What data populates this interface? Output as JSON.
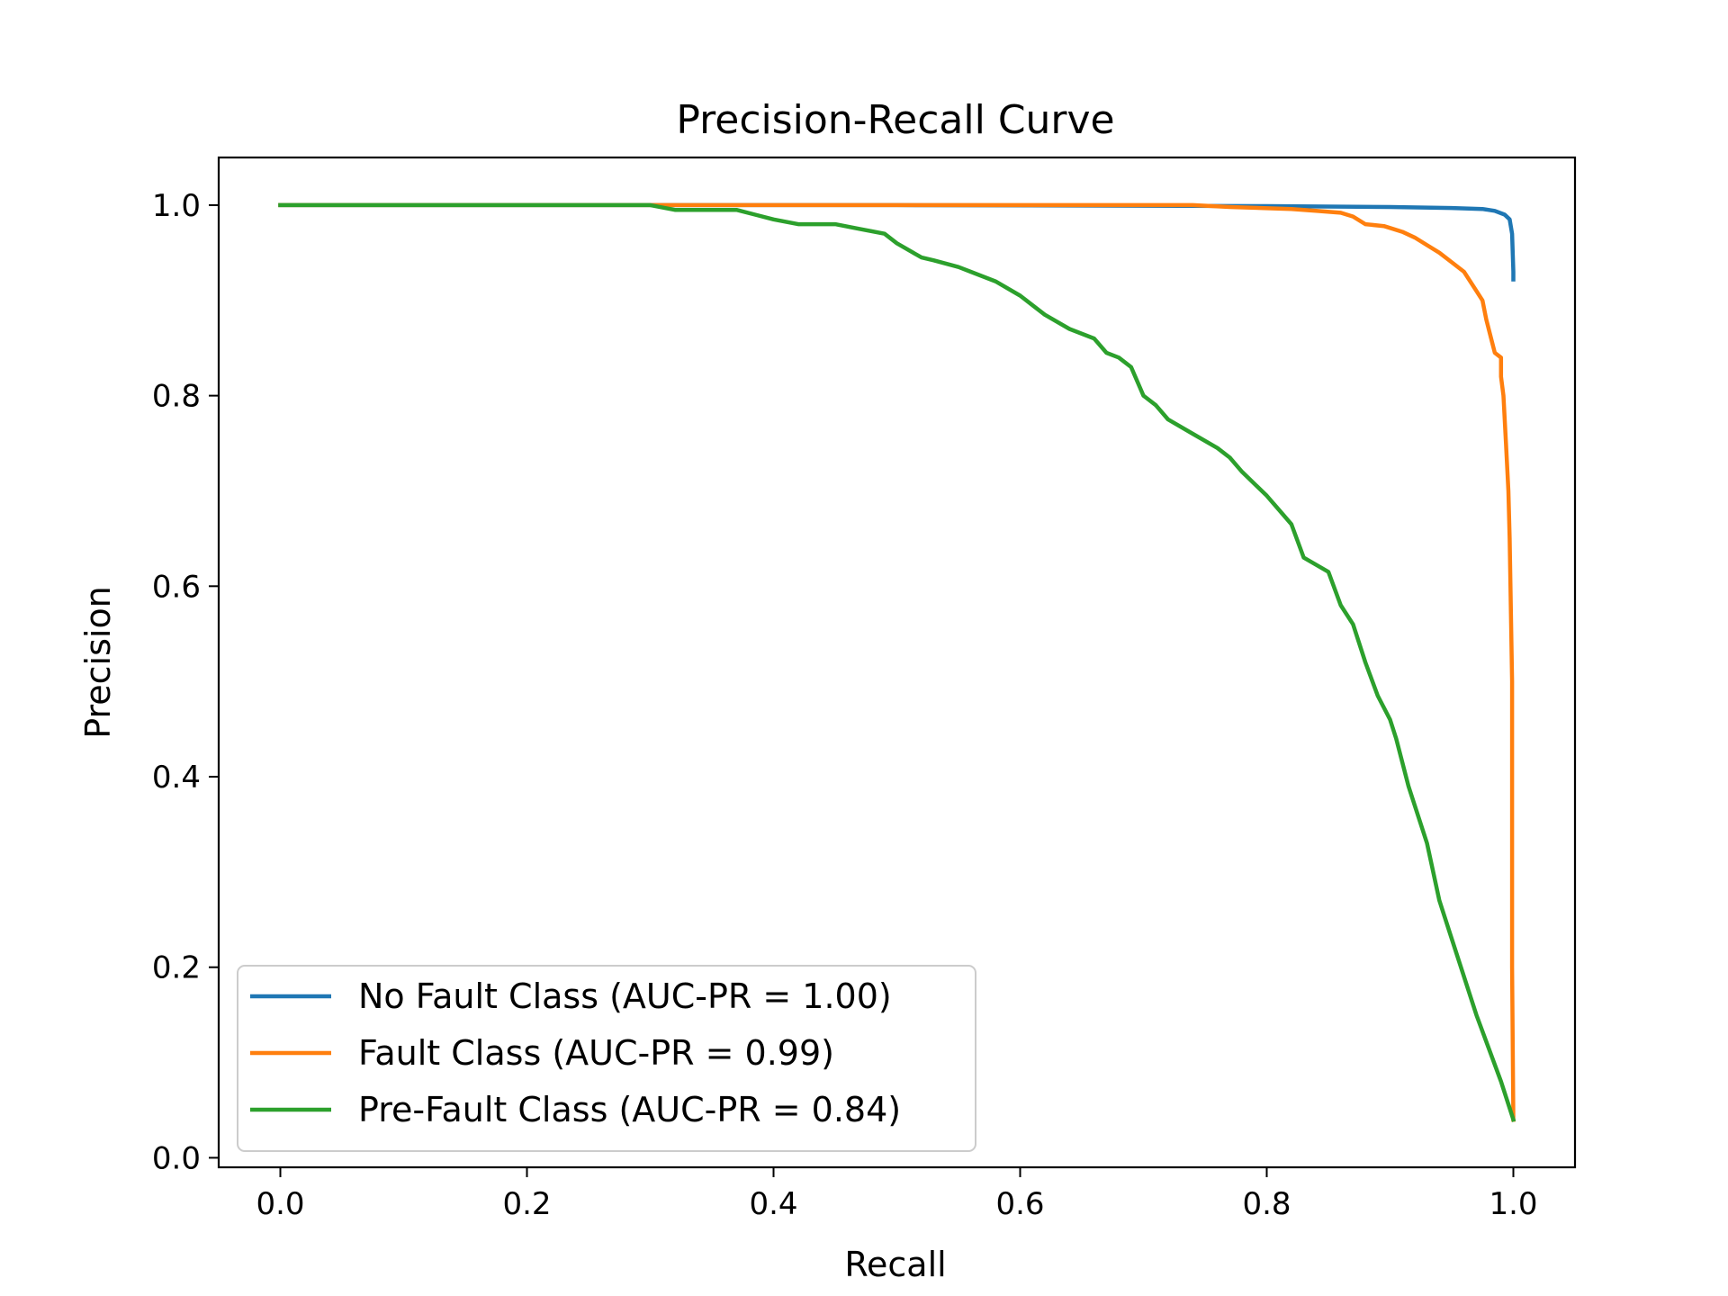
{
  "chart_data": {
    "type": "line",
    "title": "Precision-Recall Curve",
    "xlabel": "Recall",
    "ylabel": "Precision",
    "xlim": [
      -0.05,
      1.05
    ],
    "ylim": [
      -0.01,
      1.05
    ],
    "xticks": [
      "0.0",
      "0.2",
      "0.4",
      "0.6",
      "0.8",
      "1.0"
    ],
    "yticks": [
      "0.0",
      "0.2",
      "0.4",
      "0.6",
      "0.8",
      "1.0"
    ],
    "grid": false,
    "legend_position": "lower-left",
    "series": [
      {
        "name": "No Fault Class (AUC-PR = 1.00)",
        "color": "#1f77b4",
        "x": [
          0.0,
          0.5,
          0.8,
          0.9,
          0.95,
          0.975,
          0.985,
          0.993,
          0.997,
          0.999,
          1.0,
          1.0
        ],
        "y": [
          1.0,
          1.0,
          0.999,
          0.998,
          0.997,
          0.996,
          0.994,
          0.99,
          0.985,
          0.97,
          0.93,
          0.922
        ]
      },
      {
        "name": "Fault Class (AUC-PR = 0.99)",
        "color": "#ff7f0e",
        "x": [
          0.0,
          0.3,
          0.74,
          0.77,
          0.82,
          0.84,
          0.86,
          0.87,
          0.88,
          0.895,
          0.91,
          0.92,
          0.93,
          0.94,
          0.95,
          0.96,
          0.97,
          0.975,
          0.978,
          0.982,
          0.985,
          0.99,
          0.99,
          0.992,
          0.994,
          0.996,
          0.997,
          0.999,
          0.999,
          1.0
        ],
        "y": [
          1.0,
          1.0,
          1.0,
          0.998,
          0.996,
          0.994,
          0.992,
          0.988,
          0.98,
          0.978,
          0.972,
          0.966,
          0.958,
          0.95,
          0.94,
          0.93,
          0.91,
          0.9,
          0.88,
          0.86,
          0.845,
          0.84,
          0.82,
          0.8,
          0.75,
          0.7,
          0.65,
          0.5,
          0.2,
          0.04
        ]
      },
      {
        "name": "Pre-Fault Class (AUC-PR = 0.84)",
        "color": "#2ca02c",
        "x": [
          0.0,
          0.3,
          0.32,
          0.37,
          0.385,
          0.4,
          0.42,
          0.45,
          0.47,
          0.49,
          0.5,
          0.52,
          0.53,
          0.55,
          0.56,
          0.58,
          0.6,
          0.62,
          0.64,
          0.66,
          0.67,
          0.68,
          0.69,
          0.7,
          0.71,
          0.72,
          0.74,
          0.76,
          0.77,
          0.78,
          0.8,
          0.81,
          0.82,
          0.83,
          0.85,
          0.86,
          0.87,
          0.88,
          0.89,
          0.9,
          0.905,
          0.915,
          0.93,
          0.94,
          0.95,
          0.97,
          0.99,
          1.0
        ],
        "y": [
          1.0,
          1.0,
          0.995,
          0.995,
          0.99,
          0.985,
          0.98,
          0.98,
          0.975,
          0.97,
          0.96,
          0.945,
          0.942,
          0.935,
          0.93,
          0.92,
          0.905,
          0.885,
          0.87,
          0.86,
          0.845,
          0.84,
          0.83,
          0.8,
          0.79,
          0.775,
          0.76,
          0.745,
          0.735,
          0.72,
          0.695,
          0.68,
          0.665,
          0.63,
          0.615,
          0.58,
          0.56,
          0.52,
          0.485,
          0.46,
          0.44,
          0.39,
          0.33,
          0.27,
          0.23,
          0.15,
          0.08,
          0.04
        ]
      }
    ]
  }
}
